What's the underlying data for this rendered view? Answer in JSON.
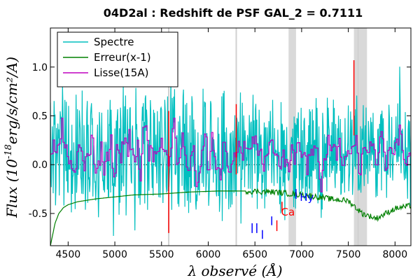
{
  "chart_data": {
    "type": "line",
    "title": "04D2al : Redshift de PSF GAL_2 = 0.7111",
    "xlabel": "λ observé (Å)",
    "ylabel_main": "Flux (10",
    "ylabel_exp": "-18",
    "ylabel_rest": "erg/s/cm²/A)",
    "xlim": [
      4310,
      8170
    ],
    "ylim": [
      -0.83,
      1.4
    ],
    "xticks": [
      4500,
      5000,
      5500,
      6000,
      6500,
      7000,
      7500,
      8000
    ],
    "yticks": [
      {
        "value": 1.0,
        "label": "1.0"
      },
      {
        "value": 0.5,
        "label": "0.5"
      },
      {
        "value": 0.0,
        "label": "0.0"
      },
      {
        "value": -0.5,
        "label": "-0.5"
      }
    ],
    "legend": {
      "position": "top-left",
      "entries": [
        {
          "label": "Spectre",
          "color": "#00bfbf"
        },
        {
          "label": "Erreur(x-1)",
          "color": "#008000"
        },
        {
          "label": "Lisse(15A)",
          "color": "#bf00bf"
        }
      ]
    },
    "shaded_bands": [
      {
        "x0": 6860,
        "x1": 6940,
        "color": "#d9d9d9"
      },
      {
        "x0": 7560,
        "x1": 7700,
        "color": "#d9d9d9"
      }
    ],
    "sky_lines": [
      5577,
      6300,
      7605
    ],
    "error_curve": [
      {
        "x": 4310,
        "y": -0.83
      },
      {
        "x": 4360,
        "y": -0.6
      },
      {
        "x": 4400,
        "y": -0.5
      },
      {
        "x": 4450,
        "y": -0.44
      },
      {
        "x": 4500,
        "y": -0.41
      },
      {
        "x": 4600,
        "y": -0.38
      },
      {
        "x": 4800,
        "y": -0.35
      },
      {
        "x": 5000,
        "y": -0.33
      },
      {
        "x": 5200,
        "y": -0.31
      },
      {
        "x": 5500,
        "y": -0.3
      },
      {
        "x": 5800,
        "y": -0.28
      },
      {
        "x": 6100,
        "y": -0.27
      },
      {
        "x": 6400,
        "y": -0.27
      },
      {
        "x": 6700,
        "y": -0.28
      },
      {
        "x": 6900,
        "y": -0.3
      },
      {
        "x": 7100,
        "y": -0.32
      },
      {
        "x": 7300,
        "y": -0.35
      },
      {
        "x": 7500,
        "y": -0.37
      },
      {
        "x": 7650,
        "y": -0.5
      },
      {
        "x": 7800,
        "y": -0.55
      },
      {
        "x": 8000,
        "y": -0.45
      },
      {
        "x": 8170,
        "y": -0.42
      }
    ],
    "spectrum_noise": {
      "amplitude_blue": 0.75,
      "amplitude_red": 0.6,
      "step_A": 5
    },
    "annotations": [
      {
        "label": "Ca",
        "x": 6780,
        "y": -0.52,
        "color": "#ff0000"
      },
      {
        "label": "Hy",
        "x": 6980,
        "y": -0.37,
        "color": "#0000ff"
      }
    ],
    "line_markers": [
      {
        "x": 6470,
        "y0": -0.7,
        "y1": -0.6,
        "color": "#0000ff"
      },
      {
        "x": 6520,
        "y0": -0.7,
        "y1": -0.6,
        "color": "#0000ff"
      },
      {
        "x": 6580,
        "y0": -0.76,
        "y1": -0.67,
        "color": "#0000ff"
      },
      {
        "x": 6680,
        "y0": -0.62,
        "y1": -0.53,
        "color": "#0000ff"
      },
      {
        "x": 6735,
        "y0": -0.68,
        "y1": -0.57,
        "color": "#ff0000"
      },
      {
        "x": 6790,
        "y0": -0.48,
        "y1": -0.38,
        "color": "#ff0000"
      },
      {
        "x": 6940,
        "y0": -0.35,
        "y1": -0.25,
        "color": "#0000ff"
      }
    ]
  }
}
